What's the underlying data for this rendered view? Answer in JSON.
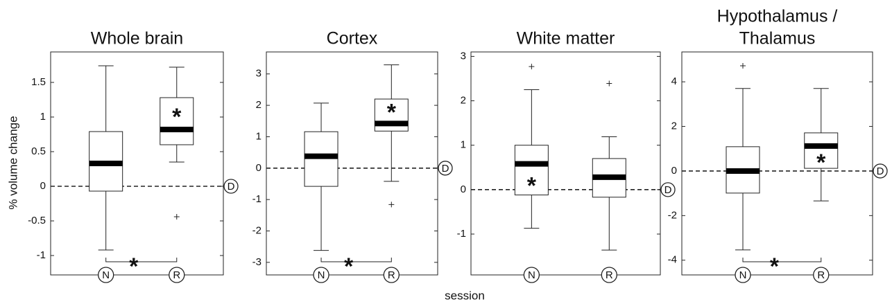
{
  "ylabel": "% volume change",
  "xlabel": "session",
  "chart_data": [
    {
      "type": "box",
      "title": "Whole brain",
      "categories": [
        "N",
        "R"
      ],
      "ylim": [
        -1.28,
        1.94
      ],
      "yticks": [
        -1,
        -0.5,
        0,
        0.5,
        1,
        1.5
      ],
      "boxes": [
        {
          "whisker_low": -0.92,
          "q1": -0.07,
          "median": 0.33,
          "q3": 0.79,
          "whisker_high": 1.74,
          "outliers": []
        },
        {
          "whisker_low": 0.35,
          "q1": 0.6,
          "median": 0.82,
          "q3": 1.28,
          "whisker_high": 1.72,
          "outliers": [
            -0.44
          ]
        }
      ],
      "reference_value": 0,
      "reference_label": "D",
      "box_annotations": [
        null,
        "*"
      ],
      "bracket_annotation": "*"
    },
    {
      "type": "box",
      "title": "Cortex",
      "categories": [
        "N",
        "R"
      ],
      "ylim": [
        -3.4,
        3.7
      ],
      "yticks": [
        -3,
        -2,
        -1,
        0,
        1,
        2,
        3
      ],
      "boxes": [
        {
          "whisker_low": -2.62,
          "q1": -0.58,
          "median": 0.38,
          "q3": 1.16,
          "whisker_high": 2.07,
          "outliers": []
        },
        {
          "whisker_low": -0.42,
          "q1": 1.18,
          "median": 1.42,
          "q3": 2.2,
          "whisker_high": 3.29,
          "outliers": [
            -1.16
          ]
        }
      ],
      "reference_value": 0,
      "reference_label": "D",
      "box_annotations": [
        null,
        "*"
      ],
      "bracket_annotation": "*"
    },
    {
      "type": "box",
      "title": "White matter",
      "categories": [
        "N",
        "R"
      ],
      "ylim": [
        -1.92,
        3.1
      ],
      "yticks": [
        -1,
        0,
        1,
        2,
        3
      ],
      "boxes": [
        {
          "whisker_low": -0.87,
          "q1": -0.12,
          "median": 0.58,
          "q3": 1.0,
          "whisker_high": 2.25,
          "outliers": [
            2.77
          ]
        },
        {
          "whisker_low": -1.36,
          "q1": -0.17,
          "median": 0.28,
          "q3": 0.7,
          "whisker_high": 1.19,
          "outliers": [
            2.39
          ]
        }
      ],
      "reference_value": 0,
      "reference_label": "D",
      "box_annotations": [
        "*",
        null
      ]
    },
    {
      "type": "box",
      "title": [
        "Hypothalamus /",
        "Thalamus"
      ],
      "categories": [
        "N",
        "R"
      ],
      "ylim": [
        -4.66,
        5.34
      ],
      "yticks": [
        -4,
        -2,
        0,
        2,
        4
      ],
      "boxes": [
        {
          "whisker_low": -3.54,
          "q1": -0.99,
          "median": 0,
          "q3": 1.09,
          "whisker_high": 3.7,
          "outliers": [
            4.72
          ]
        },
        {
          "whisker_low": -1.34,
          "q1": 0.12,
          "median": 1.12,
          "q3": 1.71,
          "whisker_high": 3.7,
          "outliers": []
        }
      ],
      "reference_value": 0,
      "reference_label": "D",
      "box_annotations": [
        null,
        "*"
      ],
      "bracket_annotation": "*"
    }
  ]
}
